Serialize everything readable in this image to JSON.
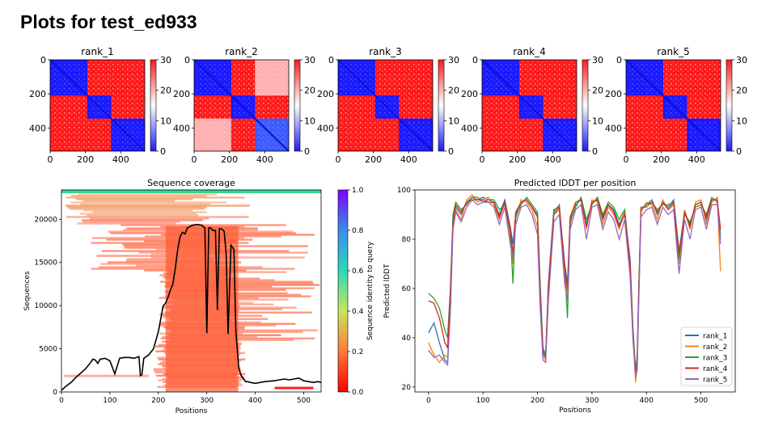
{
  "page": {
    "title": "Plots for test_ed933"
  },
  "colors": {
    "pae_low": "#1a1aff",
    "pae_high": "#ff1a1a",
    "pae_mid": "#ffffff",
    "coverage_line": "#000000",
    "rank_1": "#1f77b4",
    "rank_2": "#ff7f0e",
    "rank_3": "#2ca02c",
    "rank_4": "#d62728",
    "rank_5": "#9467bd"
  },
  "chart_data": [
    {
      "type": "heatmap",
      "title": "rank_1",
      "xticks": [
        "0",
        "200",
        "400"
      ],
      "yticks": [
        "0",
        "200",
        "400"
      ],
      "xlim": [
        0,
        536
      ],
      "ylim": [
        536,
        0
      ],
      "colorbar": {
        "ticks": [
          "0",
          "10",
          "20",
          "30"
        ],
        "range": [
          0,
          30
        ]
      }
    },
    {
      "type": "heatmap",
      "title": "rank_2",
      "xticks": [
        "0",
        "200",
        "400"
      ],
      "yticks": [
        "0",
        "200",
        "400"
      ],
      "xlim": [
        0,
        536
      ],
      "ylim": [
        536,
        0
      ],
      "colorbar": {
        "ticks": [
          "0",
          "10",
          "20",
          "30"
        ],
        "range": [
          0,
          30
        ]
      }
    },
    {
      "type": "heatmap",
      "title": "rank_3",
      "xticks": [
        "0",
        "200",
        "400"
      ],
      "yticks": [
        "0",
        "200",
        "400"
      ],
      "xlim": [
        0,
        536
      ],
      "ylim": [
        536,
        0
      ],
      "colorbar": {
        "ticks": [
          "0",
          "10",
          "20",
          "30"
        ],
        "range": [
          0,
          30
        ]
      }
    },
    {
      "type": "heatmap",
      "title": "rank_4",
      "xticks": [
        "0",
        "200",
        "400"
      ],
      "yticks": [
        "0",
        "200",
        "400"
      ],
      "xlim": [
        0,
        536
      ],
      "ylim": [
        536,
        0
      ],
      "colorbar": {
        "ticks": [
          "0",
          "10",
          "20",
          "30"
        ],
        "range": [
          0,
          30
        ]
      }
    },
    {
      "type": "heatmap",
      "title": "rank_5",
      "xticks": [
        "0",
        "200",
        "400"
      ],
      "yticks": [
        "0",
        "200",
        "400"
      ],
      "xlim": [
        0,
        536
      ],
      "ylim": [
        536,
        0
      ],
      "colorbar": {
        "ticks": [
          "0",
          "10",
          "20",
          "30"
        ],
        "range": [
          0,
          30
        ]
      }
    },
    {
      "type": "heatmap",
      "title": "Sequence coverage",
      "xlabel": "Positions",
      "ylabel": "Sequences",
      "xlim": [
        0,
        536
      ],
      "ylim": [
        0,
        23400
      ],
      "xticks": [
        0,
        100,
        200,
        300,
        400,
        500
      ],
      "yticks": [
        0,
        5000,
        10000,
        15000,
        20000
      ],
      "colorbar": {
        "label": "Sequence identity to query",
        "ticks": [
          "0.0",
          "0.2",
          "0.4",
          "0.6",
          "0.8",
          "1.0"
        ],
        "range": [
          0,
          1
        ]
      },
      "coverage_line": {
        "x": [
          0,
          10,
          20,
          30,
          40,
          50,
          60,
          65,
          70,
          75,
          80,
          90,
          100,
          110,
          120,
          130,
          140,
          150,
          155,
          160,
          163,
          166,
          170,
          180,
          190,
          200,
          205,
          210,
          215,
          220,
          225,
          230,
          235,
          240,
          245,
          250,
          255,
          260,
          270,
          280,
          290,
          296,
          300,
          304,
          308,
          312,
          318,
          322,
          326,
          330,
          336,
          340,
          344,
          350,
          356,
          360,
          366,
          370,
          376,
          380,
          384,
          390,
          400,
          420,
          440,
          450,
          460,
          470,
          480,
          490,
          500,
          510,
          520,
          530,
          536
        ],
        "y": [
          200,
          700,
          1100,
          1700,
          2200,
          2700,
          3400,
          3800,
          3700,
          3300,
          3800,
          3900,
          3600,
          2100,
          3900,
          4000,
          4000,
          3900,
          4000,
          4100,
          1900,
          2000,
          3900,
          4300,
          5000,
          7000,
          8500,
          10000,
          10300,
          11000,
          11800,
          12500,
          14300,
          16500,
          18000,
          18500,
          18300,
          19000,
          19300,
          19400,
          19300,
          19000,
          6800,
          19000,
          19000,
          18700,
          18700,
          9500,
          18900,
          18900,
          18600,
          16000,
          6700,
          17000,
          16500,
          7000,
          2800,
          2000,
          1500,
          1200,
          1200,
          1100,
          1000,
          1200,
          1300,
          1400,
          1500,
          1400,
          1500,
          1600,
          1300,
          1200,
          1100,
          1200,
          1100
        ]
      }
    },
    {
      "type": "line",
      "title": "Predicted lDDT per position",
      "xlabel": "Positions",
      "ylabel": "Predicted lDDT",
      "xlim": [
        -25,
        563
      ],
      "ylim": [
        18,
        100
      ],
      "xticks": [
        0,
        100,
        200,
        300,
        400,
        500
      ],
      "yticks": [
        20,
        40,
        60,
        80,
        100
      ],
      "legend": "bottom-right",
      "x": [
        0,
        10,
        20,
        30,
        35,
        40,
        45,
        50,
        60,
        70,
        80,
        90,
        100,
        110,
        120,
        130,
        140,
        150,
        155,
        160,
        170,
        180,
        190,
        200,
        205,
        210,
        215,
        220,
        230,
        240,
        250,
        255,
        260,
        270,
        280,
        290,
        300,
        310,
        320,
        330,
        340,
        350,
        360,
        370,
        375,
        380,
        383,
        386,
        390,
        400,
        410,
        420,
        430,
        440,
        450,
        460,
        470,
        480,
        490,
        500,
        510,
        520,
        530,
        536
      ],
      "series": [
        {
          "name": "rank_1",
          "values": [
            42,
            46,
            38,
            31,
            30,
            55,
            88,
            93,
            90,
            95,
            97,
            96,
            97,
            96,
            95,
            90,
            96,
            85,
            78,
            90,
            95,
            96,
            93,
            90,
            60,
            35,
            32,
            62,
            92,
            93,
            70,
            62,
            88,
            94,
            96,
            86,
            95,
            96,
            88,
            94,
            92,
            86,
            91,
            72,
            45,
            26,
            31,
            60,
            92,
            94,
            96,
            90,
            95,
            93,
            96,
            75,
            91,
            86,
            94,
            95,
            88,
            96,
            96,
            80
          ]
        },
        {
          "name": "rank_2",
          "values": [
            38,
            33,
            30,
            33,
            32,
            52,
            86,
            92,
            88,
            96,
            98,
            95,
            96,
            97,
            94,
            88,
            95,
            80,
            70,
            88,
            96,
            95,
            92,
            85,
            55,
            33,
            31,
            58,
            90,
            92,
            66,
            58,
            86,
            95,
            96,
            84,
            96,
            95,
            86,
            93,
            90,
            84,
            92,
            68,
            42,
            22,
            28,
            58,
            91,
            95,
            94,
            88,
            96,
            92,
            94,
            70,
            92,
            84,
            95,
            96,
            86,
            95,
            97,
            67
          ]
        },
        {
          "name": "rank_3",
          "values": [
            58,
            56,
            52,
            43,
            40,
            60,
            90,
            95,
            92,
            94,
            97,
            97,
            95,
            96,
            96,
            92,
            94,
            83,
            62,
            89,
            94,
            97,
            94,
            91,
            62,
            36,
            33,
            60,
            91,
            94,
            68,
            48,
            87,
            93,
            97,
            88,
            94,
            97,
            90,
            95,
            93,
            88,
            92,
            70,
            44,
            27,
            33,
            62,
            93,
            93,
            95,
            92,
            94,
            94,
            95,
            72,
            90,
            87,
            93,
            94,
            90,
            97,
            95,
            82
          ]
        },
        {
          "name": "rank_4",
          "values": [
            55,
            54,
            48,
            38,
            36,
            58,
            87,
            94,
            91,
            95,
            96,
            96,
            96,
            95,
            95,
            89,
            95,
            84,
            74,
            91,
            95,
            96,
            93,
            89,
            58,
            34,
            32,
            61,
            90,
            93,
            69,
            60,
            89,
            95,
            96,
            85,
            95,
            96,
            89,
            94,
            91,
            85,
            90,
            71,
            43,
            25,
            30,
            59,
            92,
            94,
            95,
            91,
            95,
            92,
            95,
            74,
            91,
            85,
            94,
            95,
            89,
            96,
            96,
            84
          ]
        },
        {
          "name": "rank_5",
          "values": [
            35,
            32,
            33,
            30,
            29,
            50,
            84,
            91,
            87,
            93,
            96,
            94,
            95,
            95,
            93,
            86,
            93,
            78,
            72,
            86,
            93,
            94,
            90,
            82,
            52,
            31,
            30,
            55,
            87,
            90,
            62,
            55,
            84,
            92,
            94,
            80,
            93,
            94,
            84,
            91,
            88,
            80,
            88,
            65,
            40,
            24,
            27,
            55,
            89,
            92,
            93,
            86,
            93,
            90,
            92,
            66,
            88,
            80,
            92,
            93,
            84,
            94,
            94,
            78
          ]
        }
      ]
    }
  ]
}
